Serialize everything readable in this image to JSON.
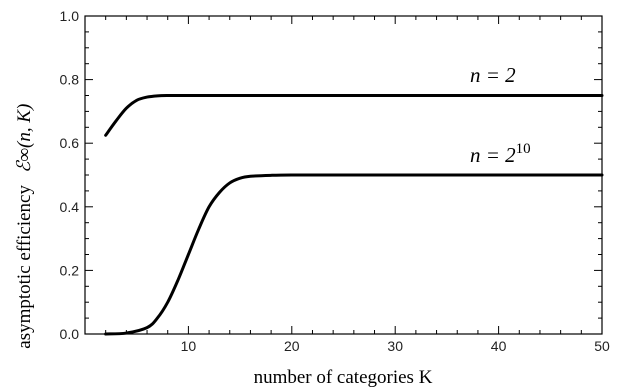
{
  "chart_data": {
    "type": "line",
    "xlabel": "number of categories K",
    "ylabel_text": "asymptotic efficiency",
    "ylabel_math": "ℰ∞(n, K)",
    "xlim": [
      0,
      50
    ],
    "ylim": [
      0,
      1
    ],
    "x_ticks": [
      10,
      20,
      30,
      40,
      50
    ],
    "x_tick_labels": [
      "10",
      "20",
      "30",
      "40",
      "50"
    ],
    "y_ticks": [
      0.0,
      0.2,
      0.4,
      0.6,
      0.8,
      1.0
    ],
    "y_tick_labels": [
      "0.0",
      "0.2",
      "0.4",
      "0.6",
      "0.8",
      "1.0"
    ],
    "grid": false,
    "series": [
      {
        "name": "n = 2",
        "label_base": "n = 2",
        "label_exp": "",
        "x": [
          2,
          3,
          4,
          5,
          6,
          7,
          8,
          10,
          15,
          20,
          30,
          40,
          50
        ],
        "y": [
          0.625,
          0.67,
          0.71,
          0.735,
          0.745,
          0.749,
          0.75,
          0.75,
          0.75,
          0.75,
          0.75,
          0.75,
          0.75
        ]
      },
      {
        "name": "n = 2^10",
        "label_base": "n = 2",
        "label_exp": "10",
        "x": [
          2,
          4,
          6,
          7,
          8,
          9,
          10,
          11,
          12,
          13,
          14,
          15,
          16,
          18,
          20,
          25,
          30,
          40,
          50
        ],
        "y": [
          0.0,
          0.003,
          0.02,
          0.05,
          0.1,
          0.17,
          0.25,
          0.33,
          0.4,
          0.445,
          0.475,
          0.49,
          0.496,
          0.499,
          0.5,
          0.5,
          0.5,
          0.5,
          0.5
        ]
      }
    ]
  }
}
